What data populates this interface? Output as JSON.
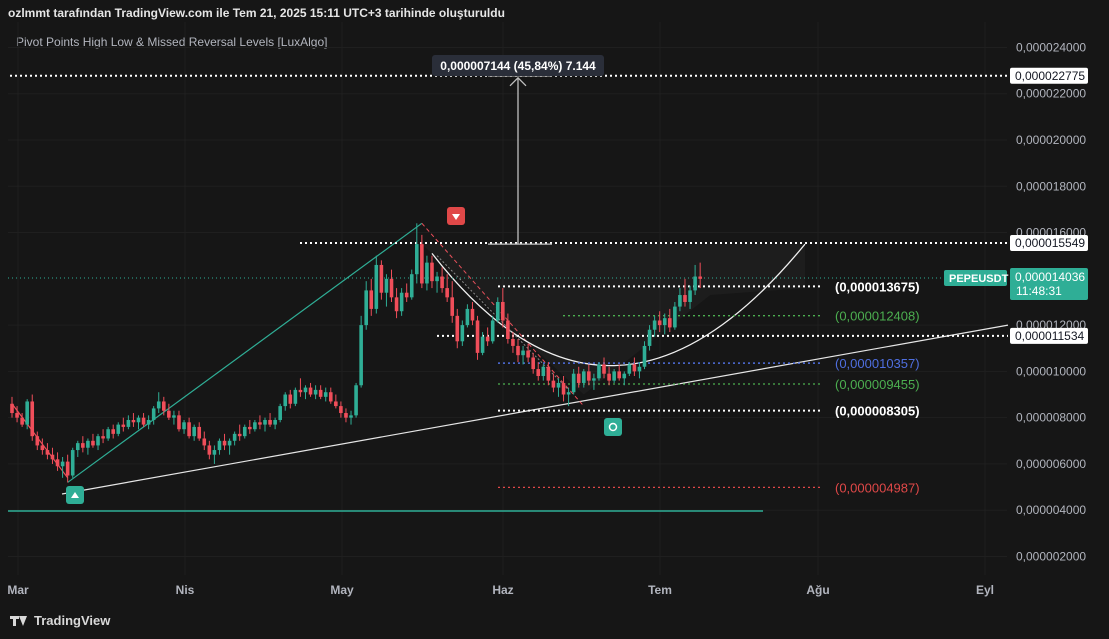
{
  "header": {
    "title": "ozlmmt tarafından TradingView.com ile Tem 21, 2025 15:11 UTC+3 tarihinde oluşturuldu",
    "indicator": "Pivot Points High Low & Missed Reversal Levels [LuxAlgo]",
    "logo_text": "TradingView"
  },
  "chart_data": {
    "type": "candlestick",
    "symbol": "PEPEUSDT",
    "current_price_label": "0,000014036",
    "countdown": "11:48:31",
    "y_axis": {
      "min": 1.2e-06,
      "max": 2.51e-05,
      "ticks": [
        2.4e-05,
        2.2e-05,
        2e-05,
        1.8e-05,
        1.6e-05,
        1.2e-05,
        1e-05,
        8e-06,
        6e-06,
        4e-06,
        2e-06
      ],
      "tick_labels": [
        "0,000024000",
        "0,000022000",
        "0,000020000",
        "0,000018000",
        "0,000016000",
        "0,000012000",
        "0,000010000",
        "0,000008000",
        "0,000006000",
        "0,000004000",
        "0,000002000"
      ]
    },
    "x_axis": {
      "labels": [
        "Mar",
        "Nis",
        "May",
        "Haz",
        "Tem",
        "Ağu",
        "Eyl"
      ]
    },
    "measure_label": "0,000007144 (45,84%) 7.144",
    "price_tags": [
      {
        "value": 2.2775e-05,
        "label": "0,000022775"
      },
      {
        "value": 1.5549e-05,
        "label": "0,000015549"
      },
      {
        "value": 1.1534e-05,
        "label": "0,000011534"
      }
    ],
    "level_labels": [
      {
        "value": 1.3675e-05,
        "label": "(0,000013675)",
        "color": "#ffffff"
      },
      {
        "value": 1.2408e-05,
        "label": "(0,000012408)",
        "color": "#4caf50"
      },
      {
        "value": 1.0357e-05,
        "label": "(0,000010357)",
        "color": "#4f6fe0"
      },
      {
        "value": 9.455e-06,
        "label": "(0,000009455)",
        "color": "#4caf50"
      },
      {
        "value": 8.305e-06,
        "label": "(0,000008305)",
        "color": "#ffffff"
      },
      {
        "value": 4.987e-06,
        "label": "(0,000004987)",
        "color": "#e04848"
      }
    ],
    "pivots": [
      {
        "type": "high",
        "day": 81,
        "price": 1.64e-05
      },
      {
        "type": "low",
        "day": 11,
        "price": 5.2e-06
      },
      {
        "type": "low",
        "day": 113,
        "price": 8.5e-06
      }
    ],
    "colors": {
      "up": "#2fae96",
      "down": "#f04e5a",
      "background": "#161616"
    },
    "candles": [
      {
        "o": 8.6e-06,
        "h": 8.9e-06,
        "l": 8e-06,
        "c": 8.2e-06
      },
      {
        "o": 8.2e-06,
        "h": 8.5e-06,
        "l": 7.8e-06,
        "c": 8e-06
      },
      {
        "o": 8e-06,
        "h": 8.2e-06,
        "l": 7.6e-06,
        "c": 7.7e-06
      },
      {
        "o": 7.7e-06,
        "h": 8.8e-06,
        "l": 7.5e-06,
        "c": 8.7e-06
      },
      {
        "o": 8.7e-06,
        "h": 9e-06,
        "l": 7e-06,
        "c": 7.2e-06
      },
      {
        "o": 7.2e-06,
        "h": 7.4e-06,
        "l": 6.6e-06,
        "c": 6.8e-06
      },
      {
        "o": 6.8e-06,
        "h": 7.1e-06,
        "l": 6.4e-06,
        "c": 6.6e-06
      },
      {
        "o": 6.6e-06,
        "h": 6.9e-06,
        "l": 6.2e-06,
        "c": 6.4e-06
      },
      {
        "o": 6.4e-06,
        "h": 6.7e-06,
        "l": 6e-06,
        "c": 6.2e-06
      },
      {
        "o": 6.2e-06,
        "h": 6.5e-06,
        "l": 5.7e-06,
        "c": 5.9e-06
      },
      {
        "o": 5.9e-06,
        "h": 6.3e-06,
        "l": 5.4e-06,
        "c": 6.1e-06
      },
      {
        "o": 6.1e-06,
        "h": 6.4e-06,
        "l": 5.2e-06,
        "c": 5.5e-06
      },
      {
        "o": 5.5e-06,
        "h": 6.7e-06,
        "l": 5.4e-06,
        "c": 6.6e-06
      },
      {
        "o": 6.6e-06,
        "h": 7e-06,
        "l": 6.3e-06,
        "c": 6.9e-06
      },
      {
        "o": 6.9e-06,
        "h": 7.2e-06,
        "l": 6.5e-06,
        "c": 6.7e-06
      },
      {
        "o": 6.7e-06,
        "h": 7.1e-06,
        "l": 6.4e-06,
        "c": 7e-06
      },
      {
        "o": 7e-06,
        "h": 7.3e-06,
        "l": 6.7e-06,
        "c": 6.8e-06
      },
      {
        "o": 6.8e-06,
        "h": 7.3e-06,
        "l": 6.6e-06,
        "c": 7.2e-06
      },
      {
        "o": 7.2e-06,
        "h": 7.5e-06,
        "l": 6.9e-06,
        "c": 7.1e-06
      },
      {
        "o": 7.1e-06,
        "h": 7.6e-06,
        "l": 7e-06,
        "c": 7.5e-06
      },
      {
        "o": 7.5e-06,
        "h": 7.7e-06,
        "l": 7.1e-06,
        "c": 7.3e-06
      },
      {
        "o": 7.3e-06,
        "h": 7.8e-06,
        "l": 7.2e-06,
        "c": 7.7e-06
      },
      {
        "o": 7.7e-06,
        "h": 8e-06,
        "l": 7.4e-06,
        "c": 7.6e-06
      },
      {
        "o": 7.6e-06,
        "h": 8.1e-06,
        "l": 7.5e-06,
        "c": 7.9e-06
      },
      {
        "o": 7.9e-06,
        "h": 8.2e-06,
        "l": 7.6e-06,
        "c": 7.8e-06
      },
      {
        "o": 7.8e-06,
        "h": 8.1e-06,
        "l": 7.5e-06,
        "c": 8e-06
      },
      {
        "o": 8e-06,
        "h": 8.2e-06,
        "l": 7.6e-06,
        "c": 7.7e-06
      },
      {
        "o": 7.7e-06,
        "h": 8.1e-06,
        "l": 7.5e-06,
        "c": 7.9e-06
      },
      {
        "o": 7.9e-06,
        "h": 8.5e-06,
        "l": 7.7e-06,
        "c": 8.4e-06
      },
      {
        "o": 8.4e-06,
        "h": 9.1e-06,
        "l": 8.2e-06,
        "c": 8.7e-06
      },
      {
        "o": 8.7e-06,
        "h": 8.9e-06,
        "l": 8.1e-06,
        "c": 8.3e-06
      },
      {
        "o": 8.3e-06,
        "h": 8.6e-06,
        "l": 7.9e-06,
        "c": 8e-06
      },
      {
        "o": 8e-06,
        "h": 8.3e-06,
        "l": 7.7e-06,
        "c": 8.1e-06
      },
      {
        "o": 8.1e-06,
        "h": 8.3e-06,
        "l": 7.4e-06,
        "c": 7.5e-06
      },
      {
        "o": 7.5e-06,
        "h": 7.9e-06,
        "l": 7.3e-06,
        "c": 7.8e-06
      },
      {
        "o": 7.8e-06,
        "h": 8e-06,
        "l": 7.1e-06,
        "c": 7.2e-06
      },
      {
        "o": 7.2e-06,
        "h": 7.7e-06,
        "l": 7e-06,
        "c": 7.6e-06
      },
      {
        "o": 7.6e-06,
        "h": 7.8e-06,
        "l": 7e-06,
        "c": 7.1e-06
      },
      {
        "o": 7.1e-06,
        "h": 7.4e-06,
        "l": 6.6e-06,
        "c": 6.8e-06
      },
      {
        "o": 6.8e-06,
        "h": 7e-06,
        "l": 6.2e-06,
        "c": 6.4e-06
      },
      {
        "o": 6.4e-06,
        "h": 6.8e-06,
        "l": 6e-06,
        "c": 6.6e-06
      },
      {
        "o": 6.6e-06,
        "h": 7.1e-06,
        "l": 6.4e-06,
        "c": 7e-06
      },
      {
        "o": 7e-06,
        "h": 7.3e-06,
        "l": 6.6e-06,
        "c": 6.8e-06
      },
      {
        "o": 6.8e-06,
        "h": 7.1e-06,
        "l": 6.4e-06,
        "c": 7e-06
      },
      {
        "o": 7e-06,
        "h": 7.4e-06,
        "l": 6.8e-06,
        "c": 7.3e-06
      },
      {
        "o": 7.3e-06,
        "h": 7.7e-06,
        "l": 7e-06,
        "c": 7.2e-06
      },
      {
        "o": 7.2e-06,
        "h": 7.7e-06,
        "l": 7.1e-06,
        "c": 7.6e-06
      },
      {
        "o": 7.6e-06,
        "h": 7.9e-06,
        "l": 7.3e-06,
        "c": 7.5e-06
      },
      {
        "o": 7.5e-06,
        "h": 7.9e-06,
        "l": 7.4e-06,
        "c": 7.8e-06
      },
      {
        "o": 7.8e-06,
        "h": 8.1e-06,
        "l": 7.5e-06,
        "c": 7.7e-06
      },
      {
        "o": 7.7e-06,
        "h": 8e-06,
        "l": 7.4e-06,
        "c": 7.9e-06
      },
      {
        "o": 7.9e-06,
        "h": 8.2e-06,
        "l": 7.6e-06,
        "c": 7.7e-06
      },
      {
        "o": 7.7e-06,
        "h": 8e-06,
        "l": 7.5e-06,
        "c": 7.9e-06
      },
      {
        "o": 7.9e-06,
        "h": 8.6e-06,
        "l": 7.8e-06,
        "c": 8.5e-06
      },
      {
        "o": 8.5e-06,
        "h": 9.1e-06,
        "l": 8.3e-06,
        "c": 9e-06
      },
      {
        "o": 9e-06,
        "h": 9.2e-06,
        "l": 8.4e-06,
        "c": 8.6e-06
      },
      {
        "o": 8.6e-06,
        "h": 9.3e-06,
        "l": 8.5e-06,
        "c": 9.2e-06
      },
      {
        "o": 9.2e-06,
        "h": 9.7e-06,
        "l": 8.9e-06,
        "c": 9.1e-06
      },
      {
        "o": 9.1e-06,
        "h": 9.4e-06,
        "l": 8.8e-06,
        "c": 9.3e-06
      },
      {
        "o": 9.3e-06,
        "h": 9.5e-06,
        "l": 8.9e-06,
        "c": 9e-06
      },
      {
        "o": 9e-06,
        "h": 9.4e-06,
        "l": 8.8e-06,
        "c": 9.2e-06
      },
      {
        "o": 9.2e-06,
        "h": 9.4e-06,
        "l": 8.8e-06,
        "c": 8.9e-06
      },
      {
        "o": 8.9e-06,
        "h": 9.3e-06,
        "l": 8.7e-06,
        "c": 9.1e-06
      },
      {
        "o": 9.1e-06,
        "h": 9.3e-06,
        "l": 8.6e-06,
        "c": 8.7e-06
      },
      {
        "o": 8.7e-06,
        "h": 9e-06,
        "l": 8.4e-06,
        "c": 8.5e-06
      },
      {
        "o": 8.5e-06,
        "h": 8.7e-06,
        "l": 8e-06,
        "c": 8.2e-06
      },
      {
        "o": 8.2e-06,
        "h": 8.4e-06,
        "l": 7.8e-06,
        "c": 8e-06
      },
      {
        "o": 8e-06,
        "h": 8.3e-06,
        "l": 7.7e-06,
        "c": 8.1e-06
      },
      {
        "o": 8.1e-06,
        "h": 9.5e-06,
        "l": 8e-06,
        "c": 9.4e-06
      },
      {
        "o": 9.4e-06,
        "h": 1.24e-05,
        "l": 9.3e-06,
        "c": 1.2e-05
      },
      {
        "o": 1.2e-05,
        "h": 1.39e-05,
        "l": 1.18e-05,
        "c": 1.35e-05
      },
      {
        "o": 1.35e-05,
        "h": 1.4e-05,
        "l": 1.24e-05,
        "c": 1.27e-05
      },
      {
        "o": 1.27e-05,
        "h": 1.5e-05,
        "l": 1.25e-05,
        "c": 1.46e-05
      },
      {
        "o": 1.46e-05,
        "h": 1.48e-05,
        "l": 1.31e-05,
        "c": 1.34e-05
      },
      {
        "o": 1.34e-05,
        "h": 1.42e-05,
        "l": 1.28e-05,
        "c": 1.4e-05
      },
      {
        "o": 1.4e-05,
        "h": 1.44e-05,
        "l": 1.3e-05,
        "c": 1.32e-05
      },
      {
        "o": 1.32e-05,
        "h": 1.36e-05,
        "l": 1.23e-05,
        "c": 1.26e-05
      },
      {
        "o": 1.26e-05,
        "h": 1.36e-05,
        "l": 1.24e-05,
        "c": 1.34e-05
      },
      {
        "o": 1.34e-05,
        "h": 1.38e-05,
        "l": 1.3e-05,
        "c": 1.32e-05
      },
      {
        "o": 1.32e-05,
        "h": 1.44e-05,
        "l": 1.31e-05,
        "c": 1.42e-05
      },
      {
        "o": 1.42e-05,
        "h": 1.64e-05,
        "l": 1.38e-05,
        "c": 1.55e-05
      },
      {
        "o": 1.55e-05,
        "h": 1.59e-05,
        "l": 1.36e-05,
        "c": 1.38e-05
      },
      {
        "o": 1.38e-05,
        "h": 1.5e-05,
        "l": 1.35e-05,
        "c": 1.47e-05
      },
      {
        "o": 1.47e-05,
        "h": 1.5e-05,
        "l": 1.36e-05,
        "c": 1.39e-05
      },
      {
        "o": 1.39e-05,
        "h": 1.43e-05,
        "l": 1.34e-05,
        "c": 1.41e-05
      },
      {
        "o": 1.41e-05,
        "h": 1.45e-05,
        "l": 1.34e-05,
        "c": 1.36e-05
      },
      {
        "o": 1.36e-05,
        "h": 1.42e-05,
        "l": 1.3e-05,
        "c": 1.32e-05
      },
      {
        "o": 1.32e-05,
        "h": 1.39e-05,
        "l": 1.21e-05,
        "c": 1.24e-05
      },
      {
        "o": 1.24e-05,
        "h": 1.27e-05,
        "l": 1.1e-05,
        "c": 1.13e-05
      },
      {
        "o": 1.13e-05,
        "h": 1.22e-05,
        "l": 1.11e-05,
        "c": 1.2e-05
      },
      {
        "o": 1.2e-05,
        "h": 1.29e-05,
        "l": 1.19e-05,
        "c": 1.27e-05
      },
      {
        "o": 1.27e-05,
        "h": 1.3e-05,
        "l": 1.2e-05,
        "c": 1.22e-05
      },
      {
        "o": 1.22e-05,
        "h": 1.24e-05,
        "l": 1.05e-05,
        "c": 1.08e-05
      },
      {
        "o": 1.08e-05,
        "h": 1.17e-05,
        "l": 1.07e-05,
        "c": 1.15e-05
      },
      {
        "o": 1.15e-05,
        "h": 1.19e-05,
        "l": 1.11e-05,
        "c": 1.13e-05
      },
      {
        "o": 1.13e-05,
        "h": 1.24e-05,
        "l": 1.12e-05,
        "c": 1.22e-05
      },
      {
        "o": 1.22e-05,
        "h": 1.32e-05,
        "l": 1.21e-05,
        "c": 1.3e-05
      },
      {
        "o": 1.3e-05,
        "h": 1.36e-05,
        "l": 1.19e-05,
        "c": 1.22e-05
      },
      {
        "o": 1.22e-05,
        "h": 1.25e-05,
        "l": 1.12e-05,
        "c": 1.14e-05
      },
      {
        "o": 1.14e-05,
        "h": 1.17e-05,
        "l": 1.08e-05,
        "c": 1.11e-05
      },
      {
        "o": 1.11e-05,
        "h": 1.14e-05,
        "l": 1.04e-05,
        "c": 1.07e-05
      },
      {
        "o": 1.07e-05,
        "h": 1.11e-05,
        "l": 1.03e-05,
        "c": 1.09e-05
      },
      {
        "o": 1.09e-05,
        "h": 1.12e-05,
        "l": 1.04e-05,
        "c": 1.06e-05
      },
      {
        "o": 1.06e-05,
        "h": 1.08e-05,
        "l": 9.9e-06,
        "c": 1.01e-05
      },
      {
        "o": 1.01e-05,
        "h": 1.04e-05,
        "l": 9.6e-06,
        "c": 9.8e-06
      },
      {
        "o": 9.8e-06,
        "h": 1.03e-05,
        "l": 9.6e-06,
        "c": 1.02e-05
      },
      {
        "o": 1.02e-05,
        "h": 1.04e-05,
        "l": 9.4e-06,
        "c": 9.6e-06
      },
      {
        "o": 9.6e-06,
        "h": 9.9e-06,
        "l": 9.1e-06,
        "c": 9.3e-06
      },
      {
        "o": 9.3e-06,
        "h": 9.7e-06,
        "l": 8.9e-06,
        "c": 9.5e-06
      },
      {
        "o": 9.5e-06,
        "h": 9.8e-06,
        "l": 8.7e-06,
        "c": 9e-06
      },
      {
        "o": 9e-06,
        "h": 9.3e-06,
        "l": 8.5e-06,
        "c": 9.1e-06
      },
      {
        "o": 9.1e-06,
        "h": 1.01e-05,
        "l": 9e-06,
        "c": 9.9e-06
      },
      {
        "o": 9.9e-06,
        "h": 1.02e-05,
        "l": 9.3e-06,
        "c": 9.5e-06
      },
      {
        "o": 9.5e-06,
        "h": 1.01e-05,
        "l": 9.3e-06,
        "c": 1e-05
      },
      {
        "o": 1e-05,
        "h": 1.03e-05,
        "l": 9.4e-06,
        "c": 9.6e-06
      },
      {
        "o": 9.6e-06,
        "h": 9.9e-06,
        "l": 9.2e-06,
        "c": 9.7e-06
      },
      {
        "o": 9.7e-06,
        "h": 1.04e-05,
        "l": 9.6e-06,
        "c": 1.03e-05
      },
      {
        "o": 1.03e-05,
        "h": 1.06e-05,
        "l": 9.7e-06,
        "c": 9.9e-06
      },
      {
        "o": 9.9e-06,
        "h": 1.02e-05,
        "l": 9.4e-06,
        "c": 9.6e-06
      },
      {
        "o": 9.6e-06,
        "h": 1.01e-05,
        "l": 9.5e-06,
        "c": 1e-05
      },
      {
        "o": 1e-05,
        "h": 1.03e-05,
        "l": 9.6e-06,
        "c": 9.7e-06
      },
      {
        "o": 9.7e-06,
        "h": 1e-05,
        "l": 9.4e-06,
        "c": 9.9e-06
      },
      {
        "o": 9.9e-06,
        "h": 1.04e-05,
        "l": 9.8e-06,
        "c": 1.03e-05
      },
      {
        "o": 1.03e-05,
        "h": 1.06e-05,
        "l": 9.8e-06,
        "c": 1e-05
      },
      {
        "o": 1e-05,
        "h": 1.04e-05,
        "l": 9.7e-06,
        "c": 1.02e-05
      },
      {
        "o": 1.02e-05,
        "h": 1.13e-05,
        "l": 1.01e-05,
        "c": 1.11e-05
      },
      {
        "o": 1.11e-05,
        "h": 1.2e-05,
        "l": 1.09e-05,
        "c": 1.18e-05
      },
      {
        "o": 1.18e-05,
        "h": 1.24e-05,
        "l": 1.15e-05,
        "c": 1.22e-05
      },
      {
        "o": 1.22e-05,
        "h": 1.26e-05,
        "l": 1.17e-05,
        "c": 1.2e-05
      },
      {
        "o": 1.2e-05,
        "h": 1.25e-05,
        "l": 1.16e-05,
        "c": 1.23e-05
      },
      {
        "o": 1.23e-05,
        "h": 1.27e-05,
        "l": 1.17e-05,
        "c": 1.19e-05
      },
      {
        "o": 1.19e-05,
        "h": 1.3e-05,
        "l": 1.18e-05,
        "c": 1.28e-05
      },
      {
        "o": 1.28e-05,
        "h": 1.36e-05,
        "l": 1.26e-05,
        "c": 1.33e-05
      },
      {
        "o": 1.33e-05,
        "h": 1.4e-05,
        "l": 1.28e-05,
        "c": 1.3e-05
      },
      {
        "o": 1.3e-05,
        "h": 1.37e-05,
        "l": 1.27e-05,
        "c": 1.35e-05
      },
      {
        "o": 1.35e-05,
        "h": 1.46e-05,
        "l": 1.33e-05,
        "c": 1.41e-05
      },
      {
        "o": 1.41e-05,
        "h": 1.47e-05,
        "l": 1.36e-05,
        "c": 1.4e-05
      }
    ]
  }
}
